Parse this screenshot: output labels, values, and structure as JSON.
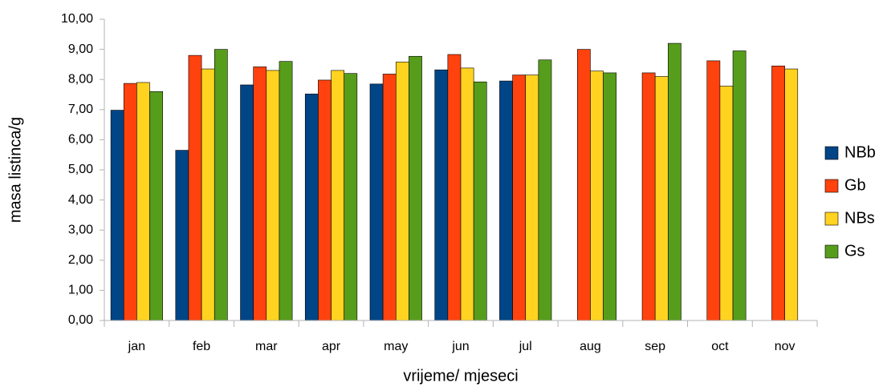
{
  "chart_data": {
    "type": "bar",
    "x_label": "vrijeme/ mjeseci",
    "y_label": "masa listinca/g",
    "categories": [
      "jan",
      "feb",
      "mar",
      "apr",
      "may",
      "jun",
      "jul",
      "aug",
      "sep",
      "oct",
      "nov"
    ],
    "series": [
      {
        "name": "NBb",
        "color": "#004586",
        "values": [
          6.98,
          5.65,
          7.82,
          7.52,
          7.85,
          8.32,
          7.95,
          null,
          null,
          null,
          null
        ]
      },
      {
        "name": "Gb",
        "color": "#ff420e",
        "values": [
          7.87,
          8.8,
          8.42,
          7.98,
          8.18,
          8.83,
          8.15,
          9.0,
          8.22,
          8.62,
          8.45
        ]
      },
      {
        "name": "NBs",
        "color": "#ffd320",
        "values": [
          7.9,
          8.35,
          8.3,
          8.3,
          8.58,
          8.38,
          8.15,
          8.28,
          8.1,
          7.78,
          8.35
        ]
      },
      {
        "name": "Gs",
        "color": "#579d1c",
        "values": [
          7.6,
          9.0,
          8.6,
          8.2,
          8.77,
          7.92,
          8.65,
          8.22,
          9.2,
          8.95,
          null
        ]
      }
    ],
    "ylim": [
      0,
      10
    ],
    "yticks": [
      {
        "value": 0,
        "label": "0,00"
      },
      {
        "value": 1,
        "label": "1,00"
      },
      {
        "value": 2,
        "label": "2,00"
      },
      {
        "value": 3,
        "label": "3,00"
      },
      {
        "value": 4,
        "label": "4,00"
      },
      {
        "value": 5,
        "label": "5,00"
      },
      {
        "value": 6,
        "label": "6,00"
      },
      {
        "value": 7,
        "label": "7,00"
      },
      {
        "value": 8,
        "label": "8,00"
      },
      {
        "value": 9,
        "label": "9,00"
      },
      {
        "value": 10,
        "label": "10,00"
      }
    ],
    "grid": false,
    "legend": "right"
  }
}
